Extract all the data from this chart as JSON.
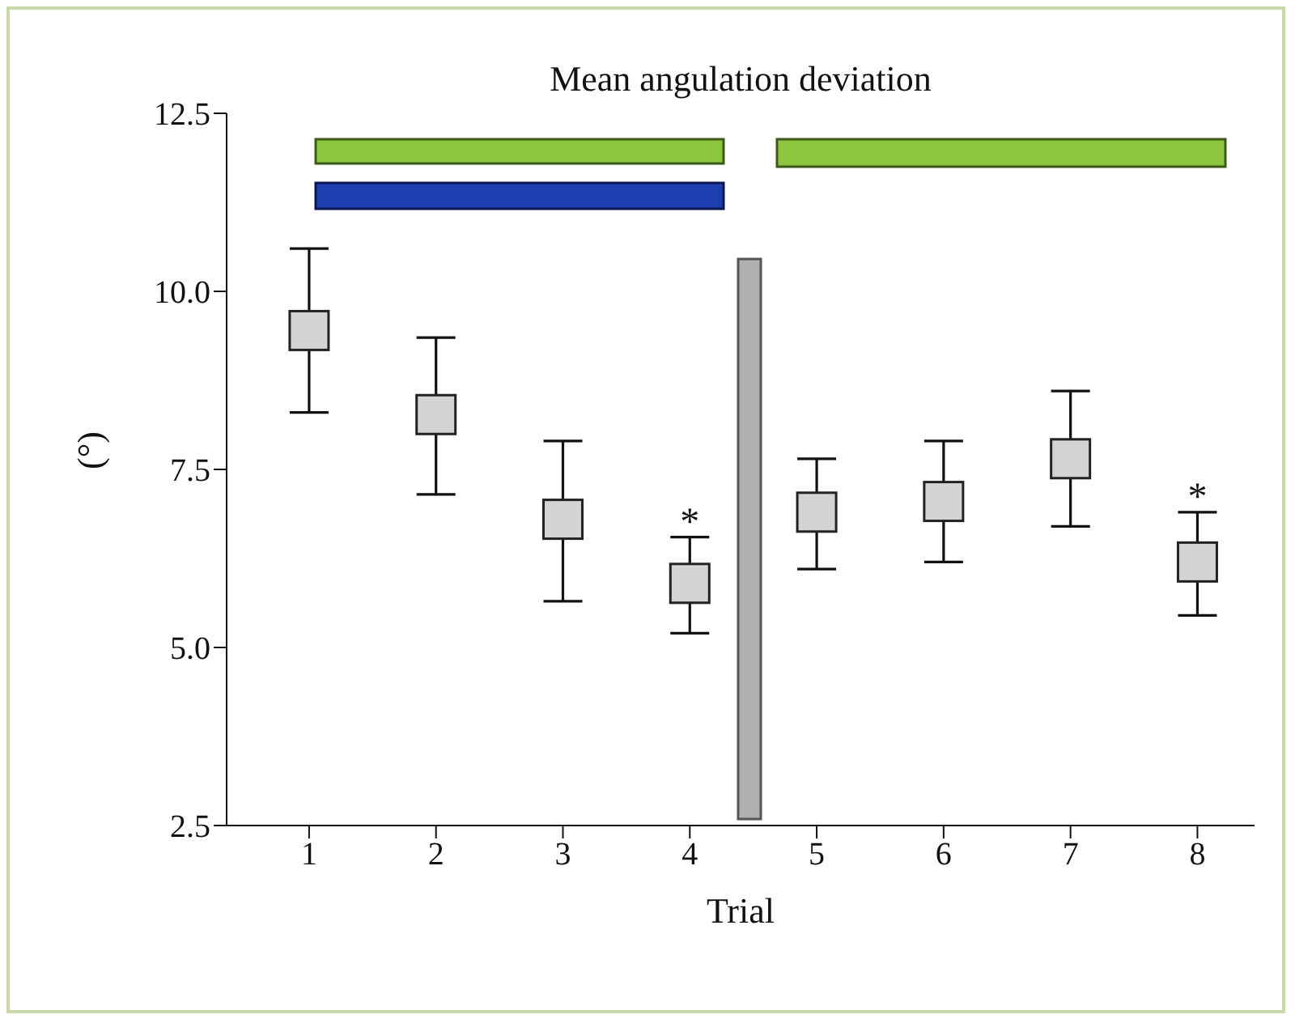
{
  "chart_data": {
    "type": "scatter",
    "title": "Mean angulation deviation",
    "xlabel": "Trial",
    "ylabel": "(°)",
    "categories": [
      "1",
      "2",
      "3",
      "4",
      "5",
      "6",
      "7",
      "8"
    ],
    "series": [
      {
        "color": "#d3d3d3",
        "values": [
          9.45,
          8.27,
          6.8,
          5.9,
          6.9,
          7.05,
          7.65,
          6.2
        ],
        "errors": [
          [
            8.3,
            10.6
          ],
          [
            7.15,
            9.35
          ],
          [
            5.65,
            7.9
          ],
          [
            5.2,
            6.55
          ],
          [
            6.1,
            7.65
          ],
          [
            6.2,
            7.9
          ],
          [
            6.7,
            8.6
          ],
          [
            5.45,
            6.9
          ]
        ]
      }
    ],
    "ylim": [
      2.5,
      12.5
    ],
    "yticks": [
      2.5,
      {
        "value": 5,
        "label": "5.0"
      },
      7.5,
      {
        "value": 10,
        "label": "10.0"
      },
      12.5
    ],
    "annotations": [
      {
        "text": "*",
        "x": "4",
        "y": 6.55
      },
      {
        "text": "*",
        "x": "8",
        "y": 6.9
      }
    ],
    "marker": "square",
    "grid": false,
    "legend": false
  }
}
